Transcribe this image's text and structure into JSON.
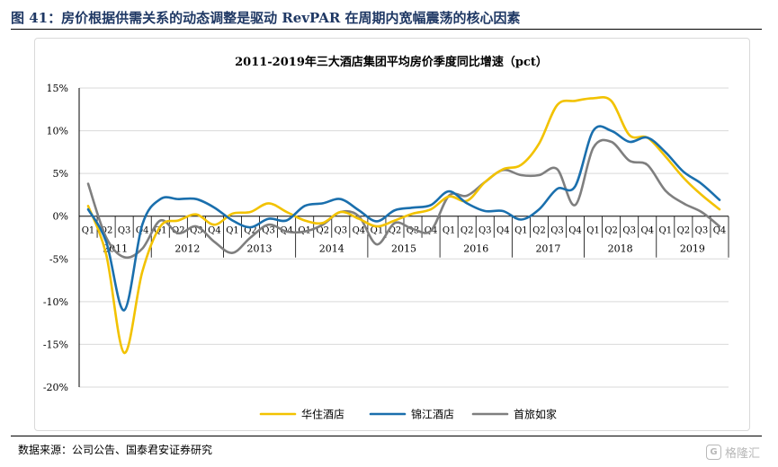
{
  "figure": {
    "title": "图 41：房价根据供需关系的动态调整是驱动 RevPAR 在周期内宽幅震荡的核心因素",
    "source": "数据来源：公司公告、国泰君安证券研究",
    "watermark": "格隆汇"
  },
  "chart_data": {
    "type": "line",
    "title": "2011-2019年三大酒店集团平均房价季度同比增速（pct）",
    "xlabel": "",
    "ylabel": "",
    "ylim": [
      -20,
      15
    ],
    "yticks": [
      15,
      10,
      5,
      0,
      -5,
      -10,
      -15,
      -20
    ],
    "ytick_labels": [
      "15%",
      "10%",
      "5%",
      "0%",
      "-5%",
      "-10%",
      "-15%",
      "-20%"
    ],
    "grid": true,
    "legend_position": "bottom",
    "quarters": [
      "Q1",
      "Q2",
      "Q3",
      "Q4"
    ],
    "years": [
      "2011",
      "2012",
      "2013",
      "2014",
      "2015",
      "2016",
      "2017",
      "2018",
      "2019"
    ],
    "x": [
      "2011Q1",
      "2011Q2",
      "2011Q3",
      "2011Q4",
      "2012Q1",
      "2012Q2",
      "2012Q3",
      "2012Q4",
      "2013Q1",
      "2013Q2",
      "2013Q3",
      "2013Q4",
      "2014Q1",
      "2014Q2",
      "2014Q3",
      "2014Q4",
      "2015Q1",
      "2015Q2",
      "2015Q3",
      "2015Q4",
      "2016Q1",
      "2016Q2",
      "2016Q3",
      "2016Q4",
      "2017Q1",
      "2017Q2",
      "2017Q3",
      "2017Q4",
      "2018Q1",
      "2018Q2",
      "2018Q3",
      "2018Q4",
      "2019Q1",
      "2019Q2",
      "2019Q3",
      "2019Q4"
    ],
    "series": [
      {
        "name": "华住酒店",
        "color": "#f2c200",
        "values": [
          1.2,
          -4.5,
          -16.0,
          -6.5,
          -1.2,
          -0.5,
          0.2,
          -1.0,
          0.3,
          0.5,
          1.5,
          0.5,
          -0.5,
          -0.8,
          0.5,
          -0.3,
          -1.2,
          -0.5,
          0.3,
          0.8,
          2.3,
          1.8,
          4.0,
          5.5,
          6.0,
          8.5,
          13.0,
          13.5,
          13.8,
          13.5,
          9.5,
          9.2,
          7.0,
          4.5,
          2.5,
          0.8
        ]
      },
      {
        "name": "锦江酒店",
        "color": "#1a6fad",
        "values": [
          0.8,
          -3.0,
          -11.0,
          -1.0,
          2.0,
          2.0,
          2.0,
          1.0,
          -0.5,
          -1.3,
          -0.3,
          -0.5,
          1.2,
          1.5,
          2.0,
          0.7,
          -0.6,
          0.7,
          1.0,
          1.3,
          2.9,
          1.5,
          0.6,
          0.6,
          -0.4,
          0.8,
          3.2,
          3.5,
          10.0,
          10.0,
          8.7,
          9.2,
          7.5,
          5.2,
          3.8,
          1.9
        ]
      },
      {
        "name": "首旅如家",
        "color": "#7f7f7f",
        "values": [
          3.8,
          -2.5,
          -4.8,
          -3.8,
          -0.5,
          -2.0,
          -1.2,
          -3.0,
          -4.3,
          -2.5,
          -1.0,
          -1.8,
          -1.8,
          -1.0,
          0.5,
          0.0,
          -3.3,
          -0.8,
          -1.5,
          -1.7,
          2.4,
          2.4,
          4.0,
          5.4,
          4.8,
          4.8,
          5.5,
          1.3,
          8.0,
          8.7,
          6.5,
          6.0,
          3.0,
          1.5,
          0.5,
          -1.2
        ]
      }
    ]
  }
}
